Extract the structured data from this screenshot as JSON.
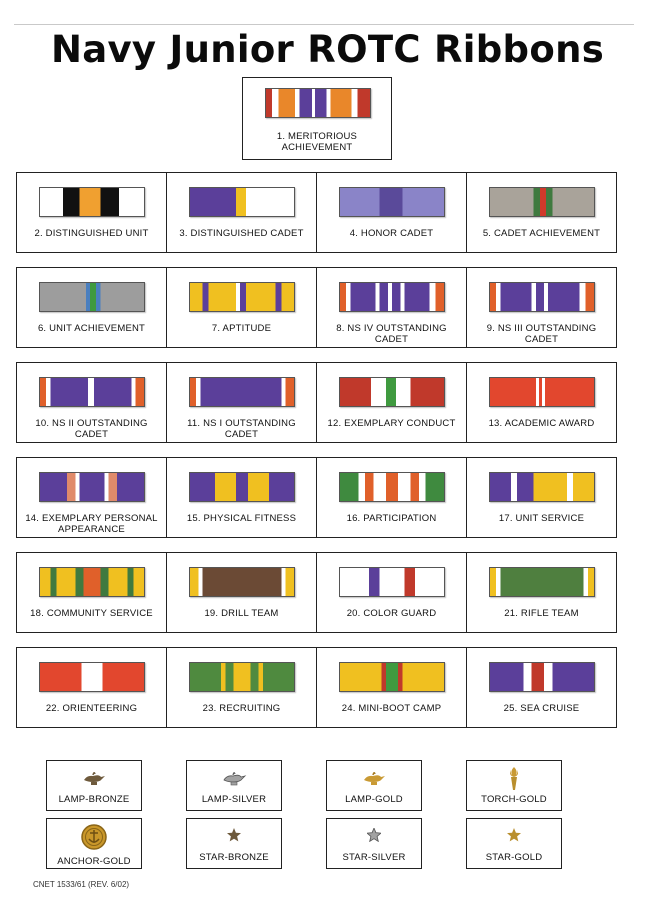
{
  "title": "Navy Junior ROTC Ribbons",
  "top_ribbon": {
    "label": "1. MERITORIOUS ACHIEVEMENT"
  },
  "ribbons": [
    {
      "label": "2. DISTINGUISHED UNIT"
    },
    {
      "label": "3. DISTINGUISHED CADET"
    },
    {
      "label": "4. HONOR CADET"
    },
    {
      "label": "5. CADET ACHIEVEMENT"
    },
    {
      "label": "6. UNIT ACHIEVEMENT"
    },
    {
      "label": "7. APTITUDE"
    },
    {
      "label": "8. NS IV OUTSTANDING CADET"
    },
    {
      "label": "9. NS III OUTSTANDING CADET"
    },
    {
      "label": "10. NS II OUTSTANDING CADET"
    },
    {
      "label": "11. NS I OUTSTANDING CADET"
    },
    {
      "label": "12. EXEMPLARY CONDUCT"
    },
    {
      "label": "13. ACADEMIC AWARD"
    },
    {
      "label": "14. EXEMPLARY PERSONAL APPEARANCE"
    },
    {
      "label": "15. PHYSICAL FITNESS"
    },
    {
      "label": "16. PARTICIPATION"
    },
    {
      "label": "17. UNIT SERVICE"
    },
    {
      "label": "18. COMMUNITY SERVICE"
    },
    {
      "label": "19. DRILL TEAM"
    },
    {
      "label": "20. COLOR GUARD"
    },
    {
      "label": "21. RIFLE TEAM"
    },
    {
      "label": "22. ORIENTEERING"
    },
    {
      "label": "23. RECRUITING"
    },
    {
      "label": "24. MINI-BOOT CAMP"
    },
    {
      "label": "25. SEA CRUISE"
    }
  ],
  "devices": [
    {
      "label": "LAMP-BRONZE",
      "icon": "lamp-icon",
      "color": "#6e5a3c"
    },
    {
      "label": "LAMP-SILVER",
      "icon": "lamp-icon",
      "color": "#8d8d8d"
    },
    {
      "label": "LAMP-GOLD",
      "icon": "lamp-icon",
      "color": "#b98f2e"
    },
    {
      "label": "TORCH-GOLD",
      "icon": "torch-icon",
      "color": "#b98f2e"
    },
    {
      "label": "ANCHOR-GOLD",
      "icon": "anchor-icon",
      "color": "#c9972a"
    },
    {
      "label": "STAR-BRONZE",
      "icon": "star-icon",
      "color": "#6e5a3c"
    },
    {
      "label": "STAR-SILVER",
      "icon": "star-icon",
      "color": "#8d8d8d"
    },
    {
      "label": "STAR-GOLD",
      "icon": "star-icon",
      "color": "#b98f2e"
    }
  ],
  "footer": "CNET 1533/61 (REV. 6/02)"
}
